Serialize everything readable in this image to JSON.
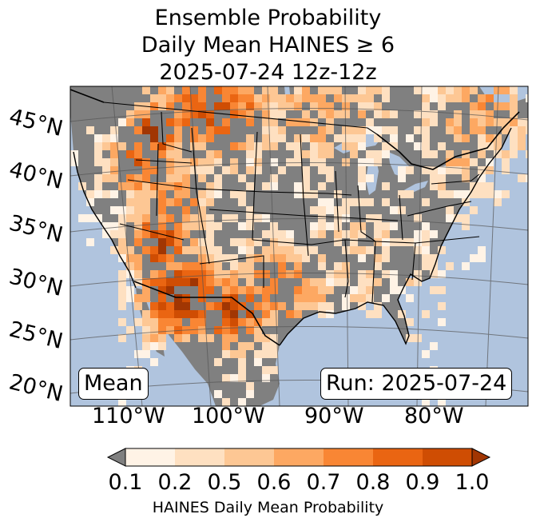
{
  "title": {
    "line1": "Ensemble Probability",
    "line2": "Daily Mean HAINES ≥ 6",
    "line3": "2025-07-24 12z-12z"
  },
  "latitude_labels": [
    "45°N",
    "40°N",
    "35°N",
    "30°N",
    "25°N",
    "20°N"
  ],
  "longitude_labels": [
    "110°W",
    "100°W",
    "90°W",
    "80°W"
  ],
  "stat_box": "Mean",
  "run_box": "Run: 2025-07-24",
  "colorbar": {
    "tick_labels": [
      "0.1",
      "0.2",
      "0.5",
      "0.6",
      "0.7",
      "0.8",
      "0.9",
      "1.0"
    ],
    "label": "HAINES Daily Mean Probability",
    "under_color": "#808080",
    "colors": [
      "#fff3e6",
      "#fee0c1",
      "#fdc794",
      "#fda862",
      "#f98634",
      "#ea6512",
      "#cf4d03",
      "#a13603"
    ]
  },
  "colors": {
    "ocean": "#b0c4de",
    "land_below_threshold": "#808080"
  }
}
